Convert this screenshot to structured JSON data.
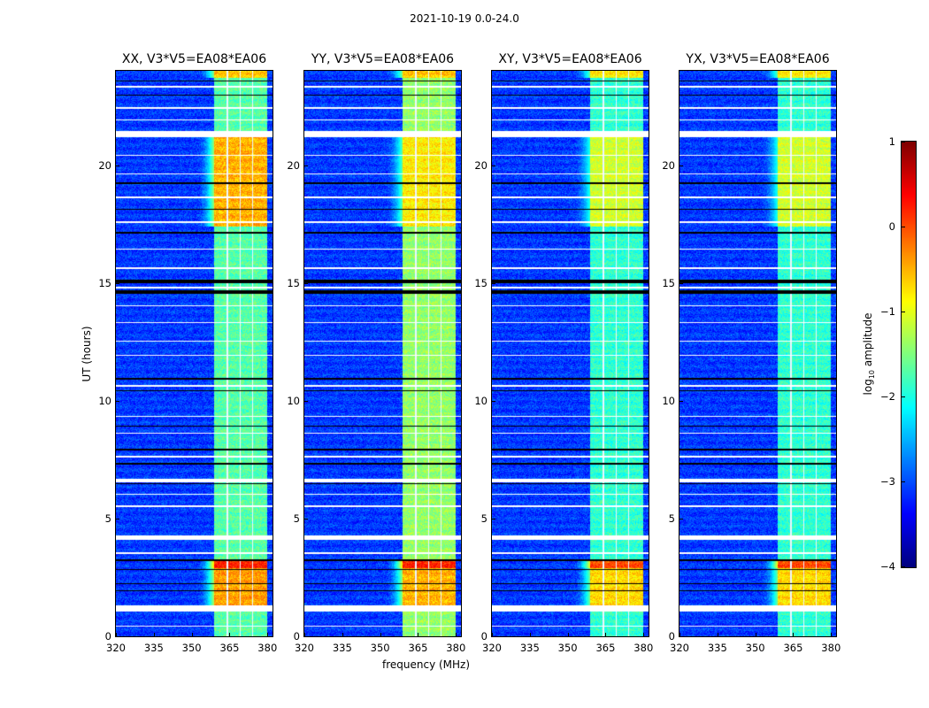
{
  "chart_data": {
    "type": "heatmap",
    "title": "2021-10-19 0.0-24.0",
    "xlabel": "frequency (MHz)",
    "ylabel": "UT (hours)",
    "xlim": [
      320,
      382
    ],
    "ylim": [
      0,
      24
    ],
    "xticks": [
      320,
      335,
      350,
      365,
      380
    ],
    "yticks": [
      0,
      5,
      10,
      15,
      20
    ],
    "colorbar": {
      "label": "log10 amplitude",
      "label_main": "log",
      "label_sub": "10",
      "label_rest": " amplitude",
      "range": [
        -4,
        1
      ],
      "ticks": [
        "1",
        "0",
        "−1",
        "−2",
        "−3",
        "−4"
      ],
      "colormap": "jet"
    },
    "background_level": -3.1,
    "signal_band_mhz": [
      359,
      380
    ],
    "band_gaps_mhz": [
      364.2,
      369.2,
      374.2
    ],
    "flagged_rows_white": [
      [
        21.2,
        21.45
      ],
      [
        6.55,
        6.7
      ],
      [
        4.1,
        4.3
      ],
      [
        1.05,
        1.3
      ],
      [
        14.75,
        14.85
      ],
      [
        23.3,
        23.35
      ],
      [
        22.4,
        22.45
      ],
      [
        21.9,
        21.95
      ],
      [
        20.4,
        20.45
      ],
      [
        19.6,
        19.65
      ],
      [
        18.6,
        18.65
      ],
      [
        16.4,
        16.45
      ],
      [
        15.6,
        15.65
      ],
      [
        14.0,
        14.05
      ],
      [
        13.3,
        13.35
      ],
      [
        12.5,
        12.55
      ],
      [
        11.9,
        11.95
      ],
      [
        10.6,
        10.65
      ],
      [
        9.3,
        9.35
      ],
      [
        8.6,
        8.65
      ],
      [
        7.6,
        7.65
      ],
      [
        6.0,
        6.05
      ],
      [
        5.5,
        5.55
      ],
      [
        3.5,
        3.55
      ],
      [
        0.4,
        0.45
      ],
      [
        17.55,
        17.6
      ]
    ],
    "flagged_rows_black": [
      [
        23.55,
        23.6
      ],
      [
        22.95,
        23.0
      ],
      [
        19.2,
        19.25
      ],
      [
        18.1,
        18.15
      ],
      [
        17.1,
        17.15
      ],
      [
        15.0,
        15.15
      ],
      [
        14.55,
        14.7
      ],
      [
        10.9,
        10.95
      ],
      [
        10.4,
        10.45
      ],
      [
        8.9,
        8.95
      ],
      [
        7.9,
        7.95
      ],
      [
        7.3,
        7.35
      ],
      [
        6.45,
        6.5
      ],
      [
        3.2,
        3.25
      ],
      [
        2.8,
        2.85
      ],
      [
        2.2,
        2.25
      ],
      [
        1.9,
        1.95
      ]
    ],
    "panels": [
      {
        "title": "XX, V3*V5=EA08*EA06",
        "band_level": -1.7,
        "episodes": [
          {
            "t": [
              17.4,
              21.2
            ],
            "level": -0.5
          },
          {
            "t": [
              1.3,
              2.9
            ],
            "level": -0.4
          },
          {
            "t": [
              2.9,
              3.2
            ],
            "level": 0.2
          },
          {
            "t": [
              23.7,
              24
            ],
            "level": -0.6
          }
        ]
      },
      {
        "title": "YY, V3*V5=EA08*EA06",
        "band_level": -1.4,
        "episodes": [
          {
            "t": [
              17.4,
              21.2
            ],
            "level": -0.8
          },
          {
            "t": [
              1.3,
              2.9
            ],
            "level": -0.5
          },
          {
            "t": [
              2.9,
              3.2
            ],
            "level": 0.2
          },
          {
            "t": [
              23.7,
              24
            ],
            "level": -0.6
          }
        ]
      },
      {
        "title": "XY, V3*V5=EA08*EA06",
        "band_level": -1.9,
        "episodes": [
          {
            "t": [
              17.4,
              21.2
            ],
            "level": -1.1
          },
          {
            "t": [
              1.3,
              2.9
            ],
            "level": -0.7
          },
          {
            "t": [
              2.9,
              3.2
            ],
            "level": 0.0
          },
          {
            "t": [
              23.7,
              24
            ],
            "level": -0.8
          }
        ]
      },
      {
        "title": "YX, V3*V5=EA08*EA06",
        "band_level": -1.9,
        "episodes": [
          {
            "t": [
              17.4,
              21.2
            ],
            "level": -1.1
          },
          {
            "t": [
              1.3,
              2.9
            ],
            "level": -0.7
          },
          {
            "t": [
              2.9,
              3.2
            ],
            "level": 0.0
          },
          {
            "t": [
              23.7,
              24
            ],
            "level": -0.8
          }
        ]
      }
    ]
  }
}
